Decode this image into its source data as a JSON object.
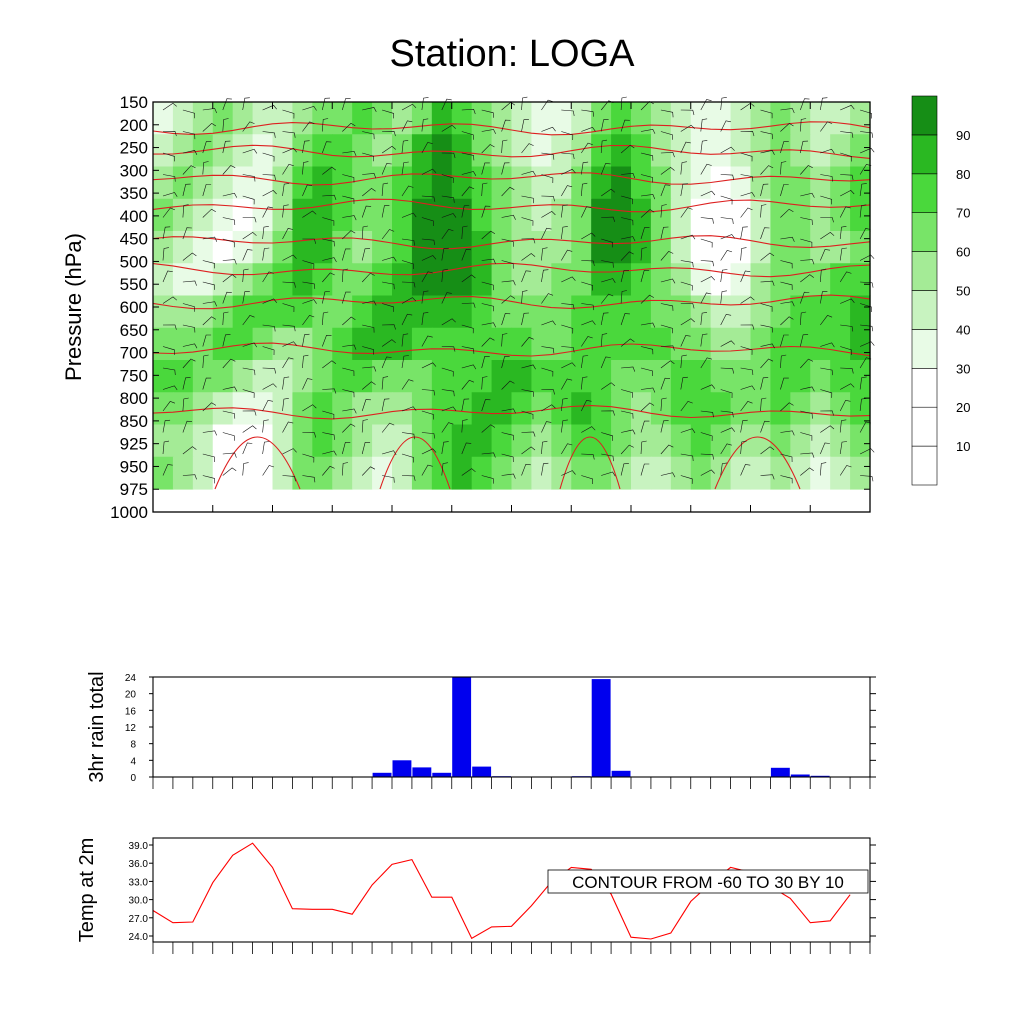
{
  "title": "Station: LOGA",
  "chart_data": [
    {
      "type": "heatmap",
      "name": "humidity-cross-section",
      "ylabel": "Pressure (hPa)",
      "y_ticks": [
        "150",
        "200",
        "250",
        "300",
        "350",
        "400",
        "450",
        "500",
        "550",
        "600",
        "650",
        "700",
        "750",
        "800",
        "850",
        "925",
        "950",
        "975",
        "1000"
      ],
      "x_tick_count": 13,
      "columns": 36,
      "colorbar": {
        "levels": [
          10,
          20,
          30,
          40,
          50,
          60,
          70,
          80,
          90
        ],
        "colors": [
          "#ffffff",
          "#ffffff",
          "#ffffff",
          "#e8fbe6",
          "#c8f3c0",
          "#a4eb96",
          "#78e468",
          "#4ad83c",
          "#2ab822",
          "#168e16"
        ]
      },
      "rows": [
        [
          30,
          40,
          50,
          60,
          50,
          40,
          40,
          50,
          60,
          60,
          70,
          60,
          50,
          60,
          80,
          70,
          60,
          50,
          40,
          30,
          30,
          40,
          60,
          70,
          60,
          50,
          40,
          30,
          30,
          40,
          50,
          60,
          50,
          40,
          40,
          50
        ],
        [
          40,
          50,
          60,
          50,
          40,
          30,
          40,
          60,
          70,
          70,
          60,
          50,
          60,
          80,
          90,
          80,
          60,
          50,
          40,
          30,
          40,
          50,
          70,
          80,
          70,
          50,
          40,
          30,
          30,
          40,
          50,
          60,
          50,
          40,
          50,
          60
        ],
        [
          50,
          60,
          50,
          40,
          30,
          30,
          50,
          70,
          80,
          70,
          60,
          60,
          70,
          80,
          90,
          80,
          70,
          60,
          50,
          40,
          40,
          60,
          80,
          90,
          70,
          60,
          40,
          30,
          20,
          30,
          50,
          60,
          60,
          50,
          60,
          70
        ],
        [
          60,
          50,
          40,
          30,
          20,
          30,
          50,
          80,
          80,
          70,
          60,
          60,
          70,
          90,
          90,
          90,
          70,
          60,
          50,
          40,
          50,
          60,
          90,
          90,
          80,
          60,
          40,
          20,
          10,
          20,
          40,
          60,
          60,
          50,
          60,
          70
        ],
        [
          50,
          40,
          30,
          20,
          30,
          40,
          60,
          80,
          80,
          60,
          50,
          60,
          70,
          90,
          90,
          90,
          80,
          60,
          50,
          50,
          50,
          60,
          90,
          90,
          80,
          60,
          40,
          20,
          10,
          20,
          40,
          60,
          60,
          50,
          50,
          60
        ],
        [
          40,
          30,
          30,
          40,
          50,
          60,
          70,
          80,
          70,
          60,
          60,
          70,
          80,
          90,
          90,
          90,
          80,
          60,
          50,
          50,
          60,
          60,
          80,
          80,
          70,
          60,
          50,
          30,
          20,
          30,
          50,
          60,
          60,
          60,
          70,
          70
        ],
        [
          50,
          50,
          50,
          60,
          70,
          70,
          70,
          70,
          60,
          60,
          70,
          80,
          80,
          80,
          80,
          80,
          70,
          60,
          60,
          60,
          60,
          70,
          70,
          70,
          70,
          60,
          60,
          50,
          40,
          40,
          50,
          60,
          70,
          70,
          70,
          80
        ],
        [
          60,
          60,
          60,
          70,
          70,
          60,
          50,
          50,
          60,
          70,
          80,
          80,
          80,
          70,
          70,
          70,
          70,
          70,
          70,
          60,
          60,
          70,
          70,
          70,
          70,
          70,
          60,
          60,
          50,
          50,
          60,
          70,
          70,
          70,
          70,
          80
        ],
        [
          70,
          70,
          60,
          60,
          50,
          40,
          40,
          50,
          60,
          70,
          70,
          60,
          60,
          60,
          70,
          70,
          70,
          80,
          80,
          70,
          70,
          70,
          70,
          60,
          60,
          60,
          70,
          70,
          60,
          60,
          60,
          70,
          70,
          60,
          70,
          70
        ],
        [
          60,
          60,
          50,
          40,
          30,
          30,
          40,
          60,
          70,
          60,
          50,
          50,
          50,
          60,
          70,
          70,
          80,
          80,
          70,
          60,
          70,
          80,
          70,
          60,
          50,
          60,
          70,
          70,
          70,
          60,
          60,
          70,
          60,
          50,
          60,
          70
        ],
        [
          50,
          50,
          40,
          20,
          10,
          20,
          40,
          60,
          70,
          60,
          50,
          40,
          40,
          60,
          70,
          80,
          80,
          70,
          60,
          50,
          60,
          70,
          70,
          60,
          50,
          50,
          60,
          70,
          60,
          50,
          50,
          60,
          50,
          40,
          50,
          60
        ],
        [
          60,
          50,
          40,
          20,
          10,
          20,
          40,
          60,
          60,
          50,
          40,
          30,
          40,
          60,
          70,
          80,
          70,
          60,
          50,
          40,
          50,
          60,
          60,
          50,
          40,
          40,
          50,
          60,
          50,
          40,
          40,
          50,
          40,
          30,
          40,
          50
        ]
      ]
    },
    {
      "type": "bar",
      "name": "rain",
      "ylabel": "3hr rain total",
      "ylim": [
        0,
        24
      ],
      "y_ticks": [
        "0",
        "4",
        "8",
        "12",
        "16",
        "20",
        "24"
      ],
      "values": [
        0,
        0,
        0,
        0,
        0,
        0,
        0,
        0,
        0,
        0,
        0,
        1,
        4,
        2.3,
        1,
        24,
        2.5,
        0.2,
        0,
        0,
        0,
        0.2,
        23.5,
        1.5,
        0,
        0,
        0,
        0,
        0,
        0,
        0,
        2.2,
        0.6,
        0.3,
        0,
        0
      ],
      "color": "#0000ee"
    },
    {
      "type": "line",
      "name": "temperature",
      "ylabel": "Temp at 2m",
      "ylim": [
        24,
        39
      ],
      "y_ticks": [
        "24.0",
        "27.0",
        "30.0",
        "33.0",
        "36.0",
        "39.0"
      ],
      "values": [
        28.2,
        26.2,
        26.3,
        32.8,
        37.3,
        39.3,
        35.3,
        28.5,
        28.4,
        28.4,
        27.6,
        32.4,
        35.8,
        36.6,
        30.4,
        30.4,
        23.6,
        25.5,
        25.6,
        29.0,
        32.9,
        35.3,
        35.0,
        30.9,
        23.8,
        23.5,
        24.5,
        29.7,
        32.7,
        35.3,
        34.5,
        32.2,
        30.2,
        26.2,
        26.5,
        30.8
      ],
      "color": "#ff0000",
      "annotation": "CONTOUR FROM -60 TO 30 BY 10"
    }
  ]
}
